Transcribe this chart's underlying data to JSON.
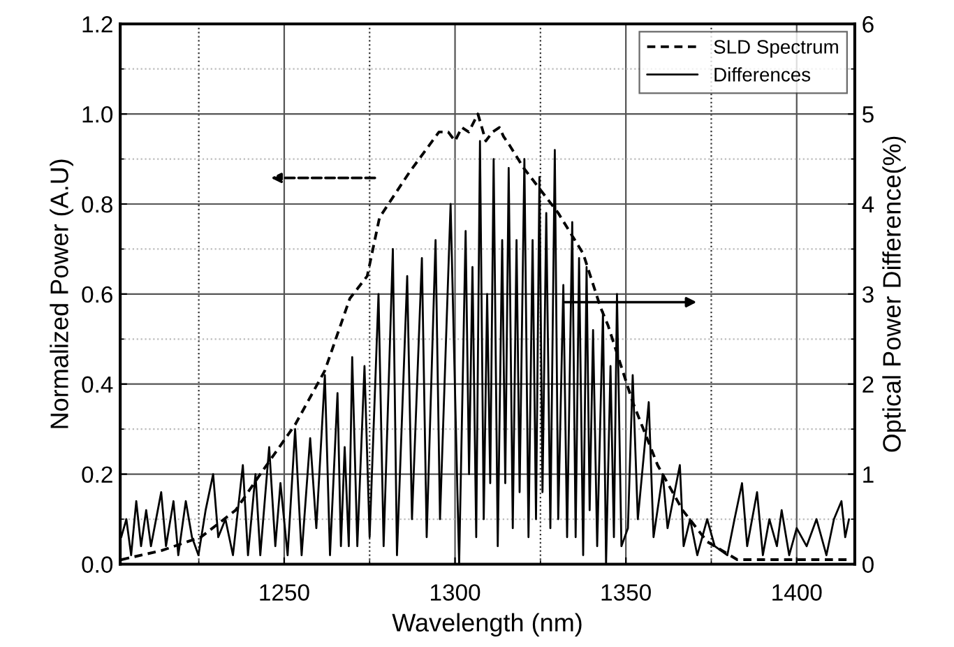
{
  "chart_data": {
    "type": "line",
    "xlabel": "Wavelength (nm)",
    "ylabel": "Normalized Power (A.U)",
    "y2label": "Optical Power Difference(%)",
    "xlim": [
      1202,
      1417
    ],
    "xticks": [
      1250,
      1300,
      1350,
      1400
    ],
    "ylim": [
      0,
      1.2
    ],
    "yticks": [
      {
        "value": 0,
        "label": "0.0"
      },
      {
        "value": 0.2,
        "label": "0.2"
      },
      {
        "value": 0.4,
        "label": "0.4"
      },
      {
        "value": 0.6,
        "label": "0.6"
      },
      {
        "value": 0.8,
        "label": "0.8"
      },
      {
        "value": 1.0,
        "label": "1.0"
      },
      {
        "value": 1.2,
        "label": "1.2"
      }
    ],
    "y2lim": [
      0,
      6
    ],
    "y2ticks": [
      0,
      1,
      2,
      3,
      4,
      5,
      6
    ],
    "grid": true,
    "legend": "top right",
    "series": [
      {
        "name": "SLD Spectrum",
        "color": "#000000",
        "line_style": "dashed",
        "x": [
          1202.3,
          1214,
          1225.6,
          1235.8,
          1243,
          1253.2,
          1261.9,
          1269.2,
          1274.3,
          1277.9,
          1286.6,
          1295.3,
          1298,
          1300,
          1302,
          1304,
          1306.7,
          1309,
          1311,
          1313,
          1314.2,
          1316,
          1320.1,
          1330.2,
          1337.5,
          1342.6,
          1344.8,
          1352,
          1359.3,
          1366.6,
          1373.8,
          1382.6,
          1400,
          1416
        ],
        "values": [
          0.01,
          0.03,
          0.06,
          0.12,
          0.2,
          0.31,
          0.43,
          0.59,
          0.64,
          0.77,
          0.87,
          0.96,
          0.96,
          0.94,
          0.97,
          0.96,
          1.0,
          0.94,
          0.96,
          0.97,
          0.95,
          0.93,
          0.88,
          0.78,
          0.69,
          0.57,
          0.53,
          0.36,
          0.22,
          0.12,
          0.05,
          0.01,
          0.01,
          0.01
        ]
      },
      {
        "name": "Differences",
        "color": "#000000",
        "line_style": "solid",
        "axis": "y2",
        "x": [
          1202.3,
          1203.8,
          1205.2,
          1206.7,
          1208.1,
          1209.6,
          1211.0,
          1214.0,
          1215.4,
          1217.6,
          1219.0,
          1221.2,
          1223.0,
          1224.9,
          1227.0,
          1229.2,
          1230.7,
          1232.8,
          1235.0,
          1237.9,
          1239.4,
          1241.6,
          1243.0,
          1245.6,
          1247.4,
          1248.9,
          1251.0,
          1253.2,
          1255.1,
          1257.6,
          1259.4,
          1261.9,
          1263.4,
          1265.6,
          1266.6,
          1267.7,
          1268.9,
          1269.9,
          1271.4,
          1273.5,
          1275.0,
          1277.6,
          1279.1,
          1281.8,
          1283.0,
          1286.0,
          1287.4,
          1290.3,
          1291.7,
          1294.3,
          1295.6,
          1298.7,
          1301.2,
          1303.1,
          1304.1,
          1305.1,
          1306.2,
          1307.3,
          1308.4,
          1309.4,
          1310.3,
          1311.3,
          1312.5,
          1313.8,
          1314.7,
          1315.7,
          1316.9,
          1318.0,
          1318.9,
          1320.3,
          1321.5,
          1322.7,
          1323.7,
          1324.7,
          1325.6,
          1326.7,
          1327.9,
          1329.2,
          1330.2,
          1331.7,
          1332.8,
          1334.3,
          1335.3,
          1336.3,
          1337.5,
          1338.5,
          1339.4,
          1340.4,
          1341.6,
          1343.3,
          1344.2,
          1345.5,
          1346.5,
          1347.4,
          1348.7,
          1350.6,
          1352.0,
          1353.5,
          1356.7,
          1358.1,
          1360.8,
          1362.2,
          1365.8,
          1366.9,
          1368.8,
          1370.9,
          1373.8,
          1376.0,
          1379.7,
          1381.8,
          1384.0,
          1385.5,
          1388.4,
          1390.1,
          1392.0,
          1394.2,
          1395.6,
          1397.8,
          1400.0,
          1402.9,
          1405.8,
          1408.7,
          1410.9,
          1413.1,
          1414.2,
          1415.3
        ],
        "values": [
          0.3,
          0.5,
          0.1,
          0.7,
          0.2,
          0.6,
          0.2,
          0.8,
          0.2,
          0.7,
          0.1,
          0.7,
          0.3,
          0.1,
          0.6,
          1.0,
          0.3,
          0.5,
          0.1,
          1.1,
          0.1,
          1.0,
          0.1,
          1.3,
          0.2,
          0.9,
          0.1,
          1.5,
          0.1,
          1.4,
          0.4,
          2.1,
          0.1,
          1.9,
          0.2,
          1.3,
          0.2,
          2.3,
          0.2,
          2.2,
          0.3,
          3.0,
          0.2,
          3.5,
          0.1,
          3.2,
          0.5,
          3.4,
          0.3,
          3.6,
          0.5,
          4.0,
          0.0,
          3.7,
          1.0,
          3.3,
          0.3,
          4.7,
          0.5,
          3.0,
          0.9,
          4.5,
          0.2,
          3.6,
          0.9,
          4.4,
          0.4,
          3.6,
          0.8,
          4.5,
          0.3,
          3.6,
          0.5,
          4.3,
          0.8,
          3.9,
          0.4,
          4.6,
          0.5,
          3.1,
          0.3,
          3.8,
          0.3,
          3.4,
          0.1,
          3.3,
          0.6,
          2.6,
          0.2,
          2.8,
          0.0,
          2.2,
          0.3,
          3.0,
          0.2,
          0.4,
          2.1,
          0.5,
          1.8,
          0.3,
          1.0,
          0.4,
          1.1,
          0.2,
          0.5,
          0.1,
          0.5,
          0.2,
          0.1,
          0.5,
          0.9,
          0.2,
          0.8,
          0.1,
          0.5,
          0.2,
          0.6,
          0.1,
          0.4,
          0.2,
          0.5,
          0.1,
          0.5,
          0.7,
          0.3,
          0.5
        ]
      }
    ]
  }
}
